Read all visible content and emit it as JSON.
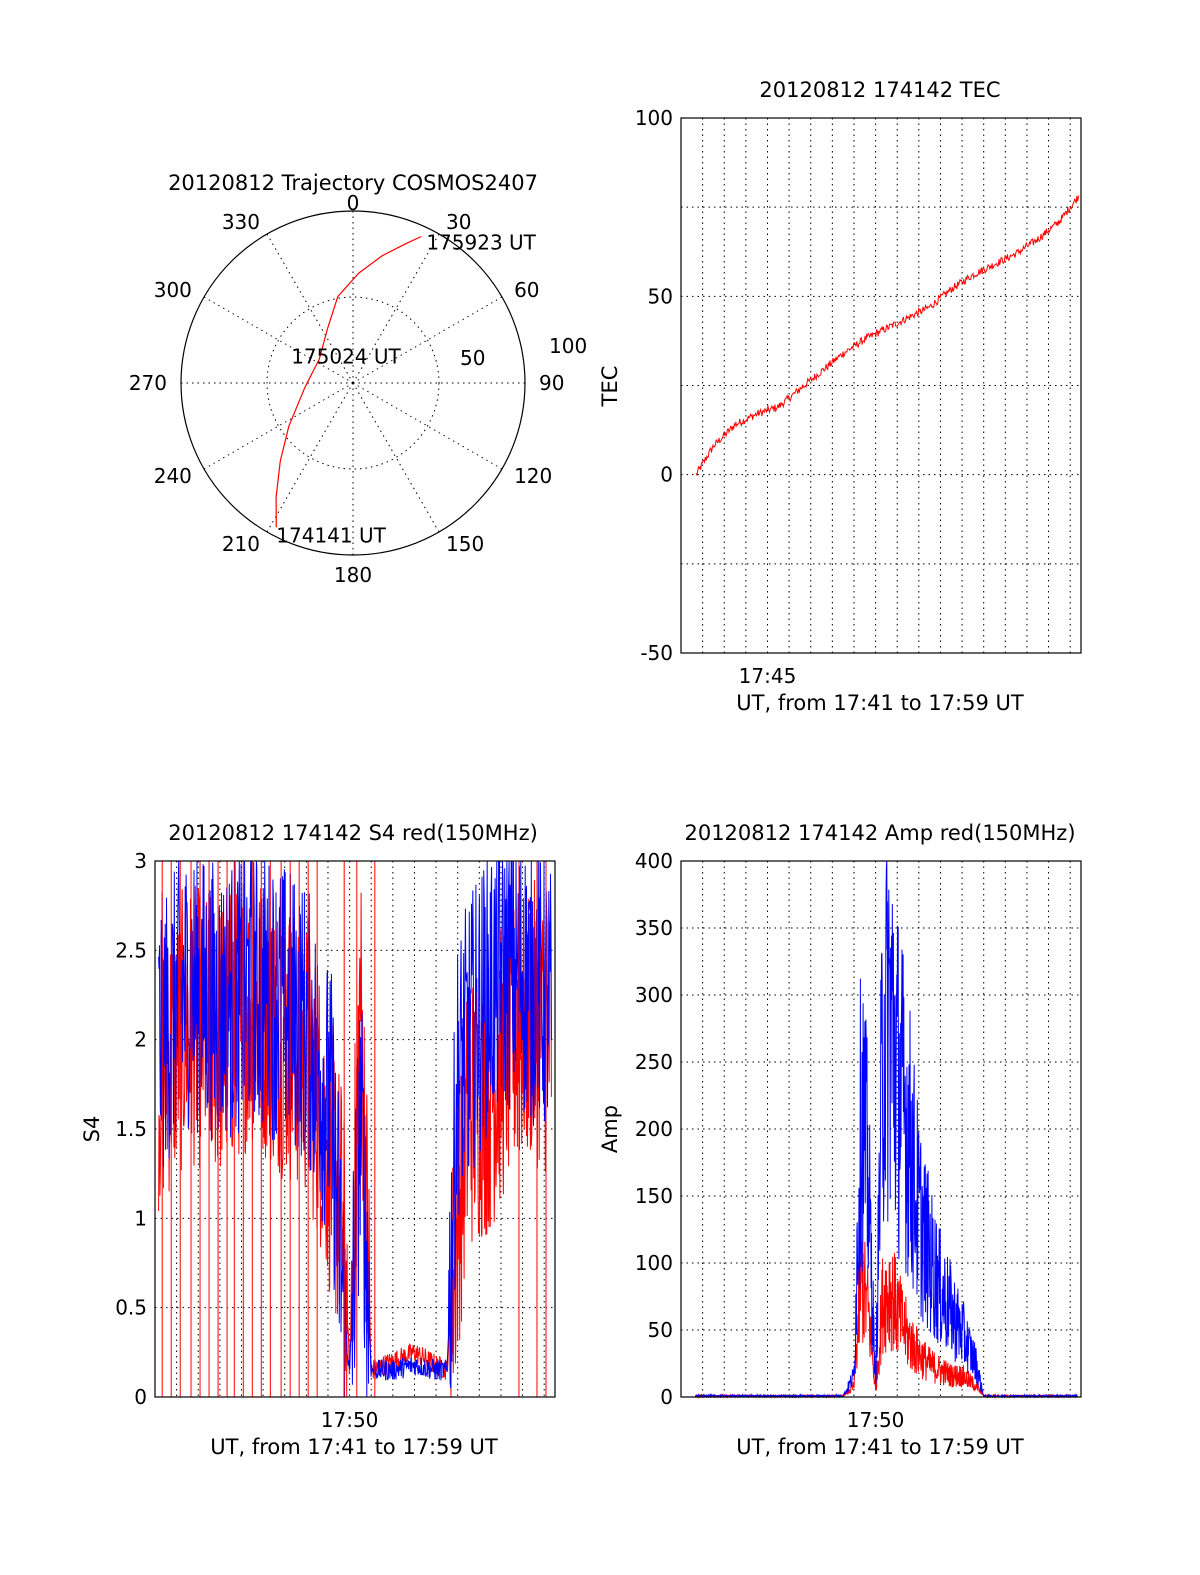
{
  "chart_data": [
    {
      "type": "polar",
      "title": "20120812 Trajectory COSMOS2407",
      "azimuth_labels": [
        "0",
        "30",
        "60",
        "90",
        "120",
        "150",
        "180",
        "210",
        "240",
        "270",
        "300",
        "330"
      ],
      "radial_labels": [
        "50",
        "100"
      ],
      "rlim": [
        0,
        100
      ],
      "grid": true,
      "series": [
        {
          "color": "#ff0000",
          "points": [
            {
              "az": 208,
              "r": 95
            },
            {
              "az": 214,
              "r": 80
            },
            {
              "az": 223,
              "r": 62
            },
            {
              "az": 236,
              "r": 45
            },
            {
              "az": 265,
              "r": 28
            },
            {
              "az": 305,
              "r": 24
            },
            {
              "az": 335,
              "r": 35
            },
            {
              "az": 350,
              "r": 51
            },
            {
              "az": 3,
              "r": 64
            },
            {
              "az": 13,
              "r": 76
            },
            {
              "az": 21,
              "r": 87
            },
            {
              "az": 25,
              "r": 94
            }
          ]
        }
      ],
      "annotations": [
        {
          "text": "175923 UT",
          "az": 25,
          "r": 94
        },
        {
          "text": "175024 UT",
          "az": 300,
          "r": 18
        },
        {
          "text": "174141 UT",
          "az": 208,
          "r": 95
        }
      ]
    },
    {
      "type": "line",
      "title": "20120812 174142 TEC",
      "ylabel": "TEC",
      "xlabel": "UT, from 17:41 to 17:59 UT",
      "xlim": [
        "17:41:00",
        "17:59:30"
      ],
      "ylim": [
        -50,
        100
      ],
      "yticks": [
        -50,
        0,
        50,
        100
      ],
      "xtick_labels": [
        {
          "time": "17:45:00",
          "label": "17:45"
        }
      ],
      "grid": true,
      "series": [
        {
          "color": "#ff0000",
          "x": [
            "17:41:42",
            "17:42:30",
            "17:43:30",
            "17:44:30",
            "17:45:30",
            "17:46:30",
            "17:47:30",
            "17:48:30",
            "17:49:30",
            "17:50:30",
            "17:51:30",
            "17:52:30",
            "17:53:30",
            "17:54:30",
            "17:55:30",
            "17:56:30",
            "17:57:30",
            "17:58:30",
            "17:59:23"
          ],
          "y": [
            0,
            8,
            14,
            17,
            19,
            24,
            29,
            34,
            38,
            41,
            44,
            47,
            52,
            56,
            59,
            62,
            66,
            71,
            78
          ]
        }
      ]
    },
    {
      "type": "line",
      "title": "20120812 174142 S4 red(150MHz)",
      "ylabel": "S4",
      "xlabel": "UT, from 17:41 to 17:59 UT",
      "xlim": [
        "17:41:00",
        "17:59:30"
      ],
      "ylim": [
        0,
        3
      ],
      "yticks": [
        0,
        0.5,
        1,
        1.5,
        2,
        2.5,
        3
      ],
      "ytick_labels": [
        "0",
        "0.5",
        "1",
        "1.5",
        "2",
        "2.5",
        "3"
      ],
      "xtick_labels": [
        {
          "time": "17:50:00",
          "label": "17:50"
        }
      ],
      "grid": true,
      "series": [
        {
          "color": "#ff0000",
          "x": [
            "17:41:10",
            "17:42:30",
            "17:44:00",
            "17:45:30",
            "17:47:00",
            "17:48:00",
            "17:48:40",
            "17:49:10",
            "17:49:40",
            "17:50:00",
            "17:50:30",
            "17:51:00",
            "17:52:00",
            "17:53:00",
            "17:54:00",
            "17:54:30",
            "17:55:00",
            "17:55:30",
            "17:56:30",
            "17:57:30",
            "17:58:30",
            "17:59:20"
          ],
          "y": [
            1.8,
            2.1,
            2.0,
            2.2,
            2.0,
            1.9,
            1.6,
            1.3,
            1.0,
            0.15,
            2.3,
            0.15,
            0.2,
            0.25,
            0.18,
            0.15,
            1.0,
            1.6,
            1.7,
            2.0,
            2.1,
            2.0
          ]
        },
        {
          "color": "#0000ff",
          "x": [
            "17:41:10",
            "17:42:30",
            "17:44:00",
            "17:45:30",
            "17:47:00",
            "17:48:00",
            "17:48:40",
            "17:49:10",
            "17:49:40",
            "17:50:00",
            "17:50:30",
            "17:51:00",
            "17:52:00",
            "17:53:00",
            "17:54:00",
            "17:54:30",
            "17:55:00",
            "17:55:30",
            "17:56:30",
            "17:57:30",
            "17:58:30",
            "17:59:20"
          ],
          "y": [
            2.0,
            2.3,
            2.2,
            2.3,
            2.2,
            2.1,
            1.8,
            1.6,
            0.6,
            0.12,
            1.6,
            0.15,
            0.15,
            0.18,
            0.15,
            0.15,
            1.8,
            2.0,
            2.3,
            2.4,
            2.3,
            2.2
          ]
        }
      ]
    },
    {
      "type": "line",
      "title": "20120812 174142 Amp red(150MHz)",
      "ylabel": "Amp",
      "xlabel": "UT, from 17:41 to 17:59 UT",
      "xlim": [
        "17:41:00",
        "17:59:30"
      ],
      "ylim": [
        0,
        400
      ],
      "yticks": [
        0,
        50,
        100,
        150,
        200,
        250,
        300,
        350,
        400
      ],
      "xtick_labels": [
        {
          "time": "17:50:00",
          "label": "17:50"
        }
      ],
      "grid": true,
      "series": [
        {
          "color": "#ff0000",
          "x": [
            "17:41:40",
            "17:48:30",
            "17:49:00",
            "17:49:20",
            "17:49:40",
            "17:50:00",
            "17:50:20",
            "17:50:40",
            "17:51:00",
            "17:51:30",
            "17:52:00",
            "17:52:30",
            "17:53:00",
            "17:53:30",
            "17:54:00",
            "17:54:40",
            "17:55:00",
            "17:59:20"
          ],
          "y": [
            0,
            0,
            10,
            110,
            80,
            5,
            90,
            100,
            80,
            55,
            40,
            30,
            25,
            20,
            20,
            10,
            0,
            0
          ]
        },
        {
          "color": "#0000ff",
          "x": [
            "17:41:40",
            "17:48:30",
            "17:49:00",
            "17:49:20",
            "17:49:40",
            "17:50:00",
            "17:50:20",
            "17:50:40",
            "17:51:00",
            "17:51:30",
            "17:52:00",
            "17:52:30",
            "17:53:00",
            "17:53:30",
            "17:54:00",
            "17:54:40",
            "17:55:00",
            "17:59:20"
          ],
          "y": [
            0,
            0,
            20,
            280,
            200,
            10,
            340,
            360,
            300,
            250,
            170,
            130,
            100,
            80,
            60,
            30,
            0,
            0
          ]
        }
      ]
    }
  ]
}
